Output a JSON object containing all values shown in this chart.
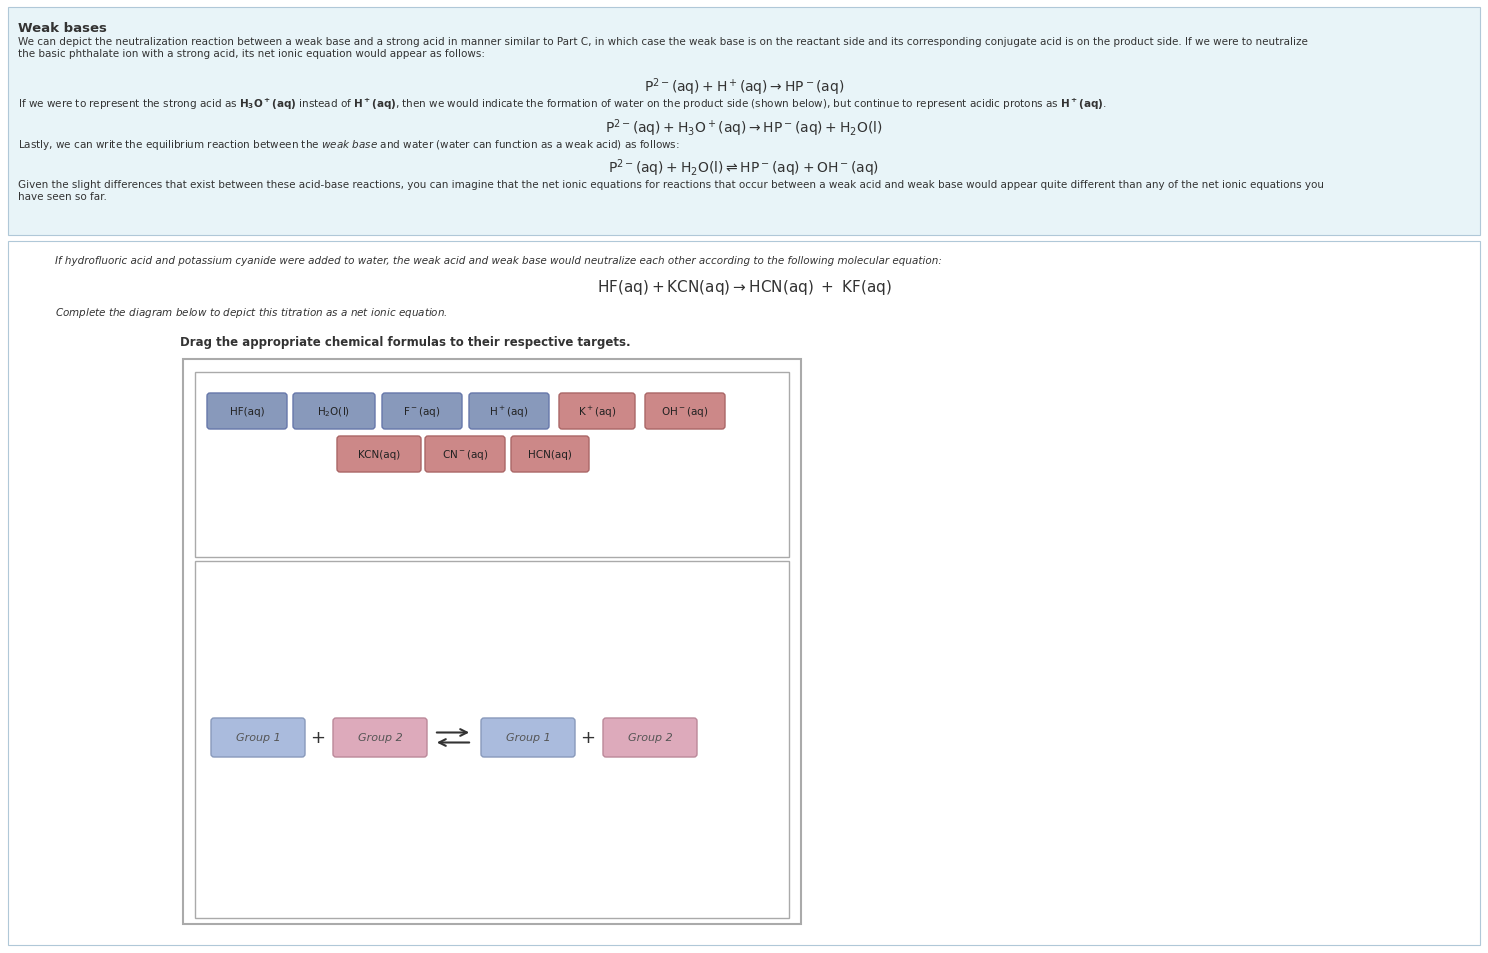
{
  "bg_color_top": "#ddeeff",
  "bg_color_bottom": "#ffffff",
  "title": "Weak bases",
  "eq1": "$\\mathrm{P^{2-}(aq) + H^+(aq) \\rightarrow HP^-(aq)}$",
  "eq2": "$\\mathrm{P^{2-}(aq) + H_3O^+(aq) \\rightarrow HP^-(aq) + H_2O(l)}$",
  "eq3": "$\\mathrm{P^{2-}(aq) + H_2O(l) \\rightleftharpoons HP^-(aq) + OH^-(aq)}$",
  "eq4": "$\\mathrm{HF(aq) + KCN(aq) \\rightarrow HCN(aq) \\ + \\ KF(aq)}$",
  "group_labels": [
    "Group 1",
    "Group 2",
    "Group 1",
    "Group 2"
  ],
  "group_colors_face": [
    "#aabbdd",
    "#ddaabb",
    "#aabbdd",
    "#ddaabb"
  ],
  "group_colors_edge": [
    "#8899bb",
    "#bb8899",
    "#8899bb",
    "#bb8899"
  ]
}
